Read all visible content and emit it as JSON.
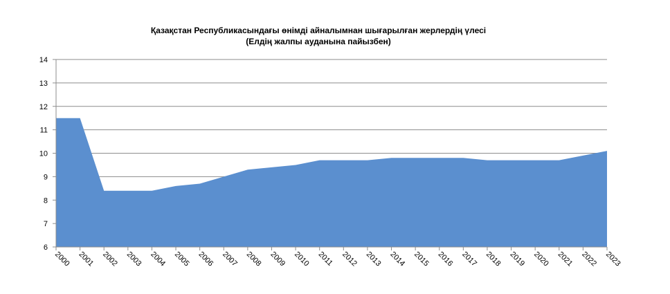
{
  "chart_data": {
    "type": "area",
    "title": "Қазақстан Республикасындағы  өнімді айналымнан шығарылған жерлердің  үлесі",
    "subtitle": "(Елдің жалпы ауданына пайызбен)",
    "xlabel": "",
    "ylabel": "",
    "ylim": [
      6,
      14
    ],
    "yticks": [
      6,
      7,
      8,
      9,
      10,
      11,
      12,
      13,
      14
    ],
    "grid": true,
    "legend": "none",
    "color": "#5b8fcf",
    "categories": [
      "2000",
      "2001",
      "2002",
      "2003",
      "2004",
      "2005",
      "2006",
      "2007",
      "2008",
      "2009",
      "2010",
      "2011",
      "2012",
      "2013",
      "2014",
      "2015",
      "2016",
      "2017",
      "2018",
      "2019",
      "2020",
      "2021",
      "2022",
      "2023"
    ],
    "values": [
      11.5,
      11.5,
      8.4,
      8.4,
      8.4,
      8.6,
      8.7,
      9.0,
      9.3,
      9.4,
      9.5,
      9.7,
      9.7,
      9.7,
      9.8,
      9.8,
      9.8,
      9.8,
      9.7,
      9.7,
      9.7,
      9.7,
      9.9,
      10.1
    ]
  }
}
